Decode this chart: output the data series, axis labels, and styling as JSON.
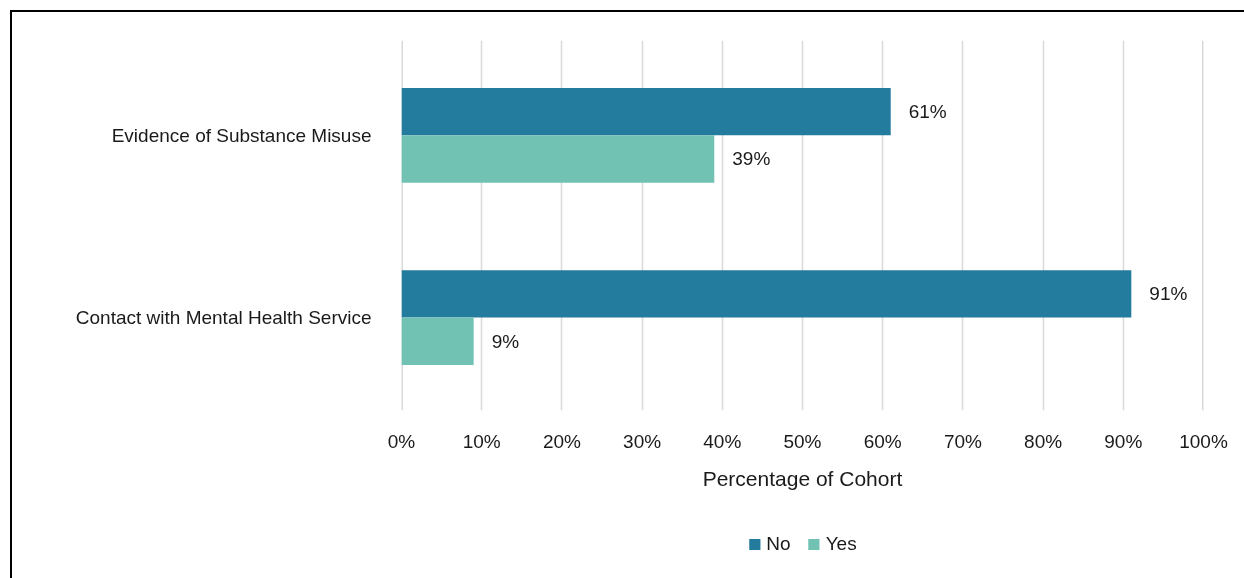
{
  "chart_data": {
    "type": "bar",
    "orientation": "horizontal",
    "xlabel": "Percentage of Cohort",
    "categories": [
      "Evidence of Substance Misuse",
      "Contact with Mental Health Service"
    ],
    "series": [
      {
        "name": "No",
        "color": "#237b9d",
        "values": [
          61,
          91
        ],
        "value_labels": [
          "61%",
          "91%"
        ]
      },
      {
        "name": "Yes",
        "color": "#72c2b4",
        "values": [
          39,
          9
        ],
        "value_labels": [
          "39%",
          "9%"
        ]
      }
    ],
    "xlim": [
      0,
      100
    ],
    "xticks": [
      {
        "value": 0,
        "label": "0%"
      },
      {
        "value": 10,
        "label": "10%"
      },
      {
        "value": 20,
        "label": "20%"
      },
      {
        "value": 30,
        "label": "30%"
      },
      {
        "value": 40,
        "label": "40%"
      },
      {
        "value": 50,
        "label": "50%"
      },
      {
        "value": 60,
        "label": "60%"
      },
      {
        "value": 70,
        "label": "70%"
      },
      {
        "value": 80,
        "label": "80%"
      },
      {
        "value": 90,
        "label": "90%"
      },
      {
        "value": 100,
        "label": "100%"
      }
    ],
    "grid": "x",
    "legend": "bottom"
  }
}
